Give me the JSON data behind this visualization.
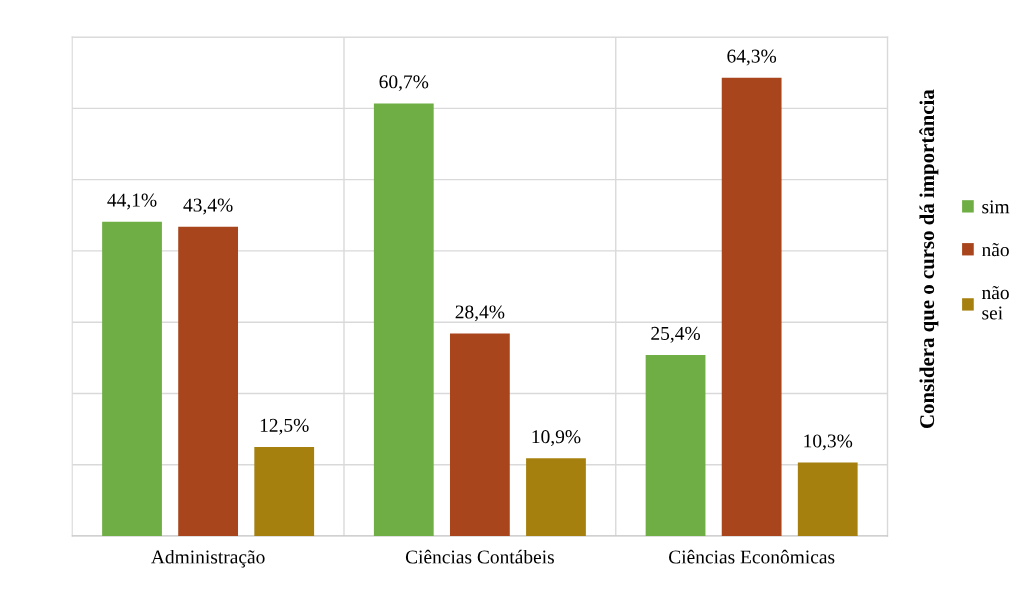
{
  "chart_data": {
    "type": "bar",
    "legend_title": "Considera que o curso dá importância",
    "categories": [
      "Administração",
      "Ciências Contábeis",
      "Ciências Econômicas"
    ],
    "series": [
      {
        "name": "sim",
        "color": "#6fae45",
        "values": [
          44.1,
          60.7,
          25.4
        ],
        "value_labels": [
          "44,1%",
          "60,7%",
          "25,4%"
        ]
      },
      {
        "name": "não",
        "color": "#a8451c",
        "values": [
          43.4,
          28.4,
          64.3
        ],
        "value_labels": [
          "43,4%",
          "28,4%",
          "64,3%"
        ]
      },
      {
        "name": "não sei",
        "color": "#a6800e",
        "values": [
          12.5,
          10.9,
          10.3
        ],
        "value_labels": [
          "12,5%",
          "10,9%",
          "10,3%"
        ]
      }
    ],
    "ylim": [
      0,
      70
    ],
    "yticks": [
      0,
      10,
      20,
      30,
      40,
      50,
      60,
      70
    ],
    "tick_labels": "x",
    "grid": true,
    "legend": "right"
  }
}
